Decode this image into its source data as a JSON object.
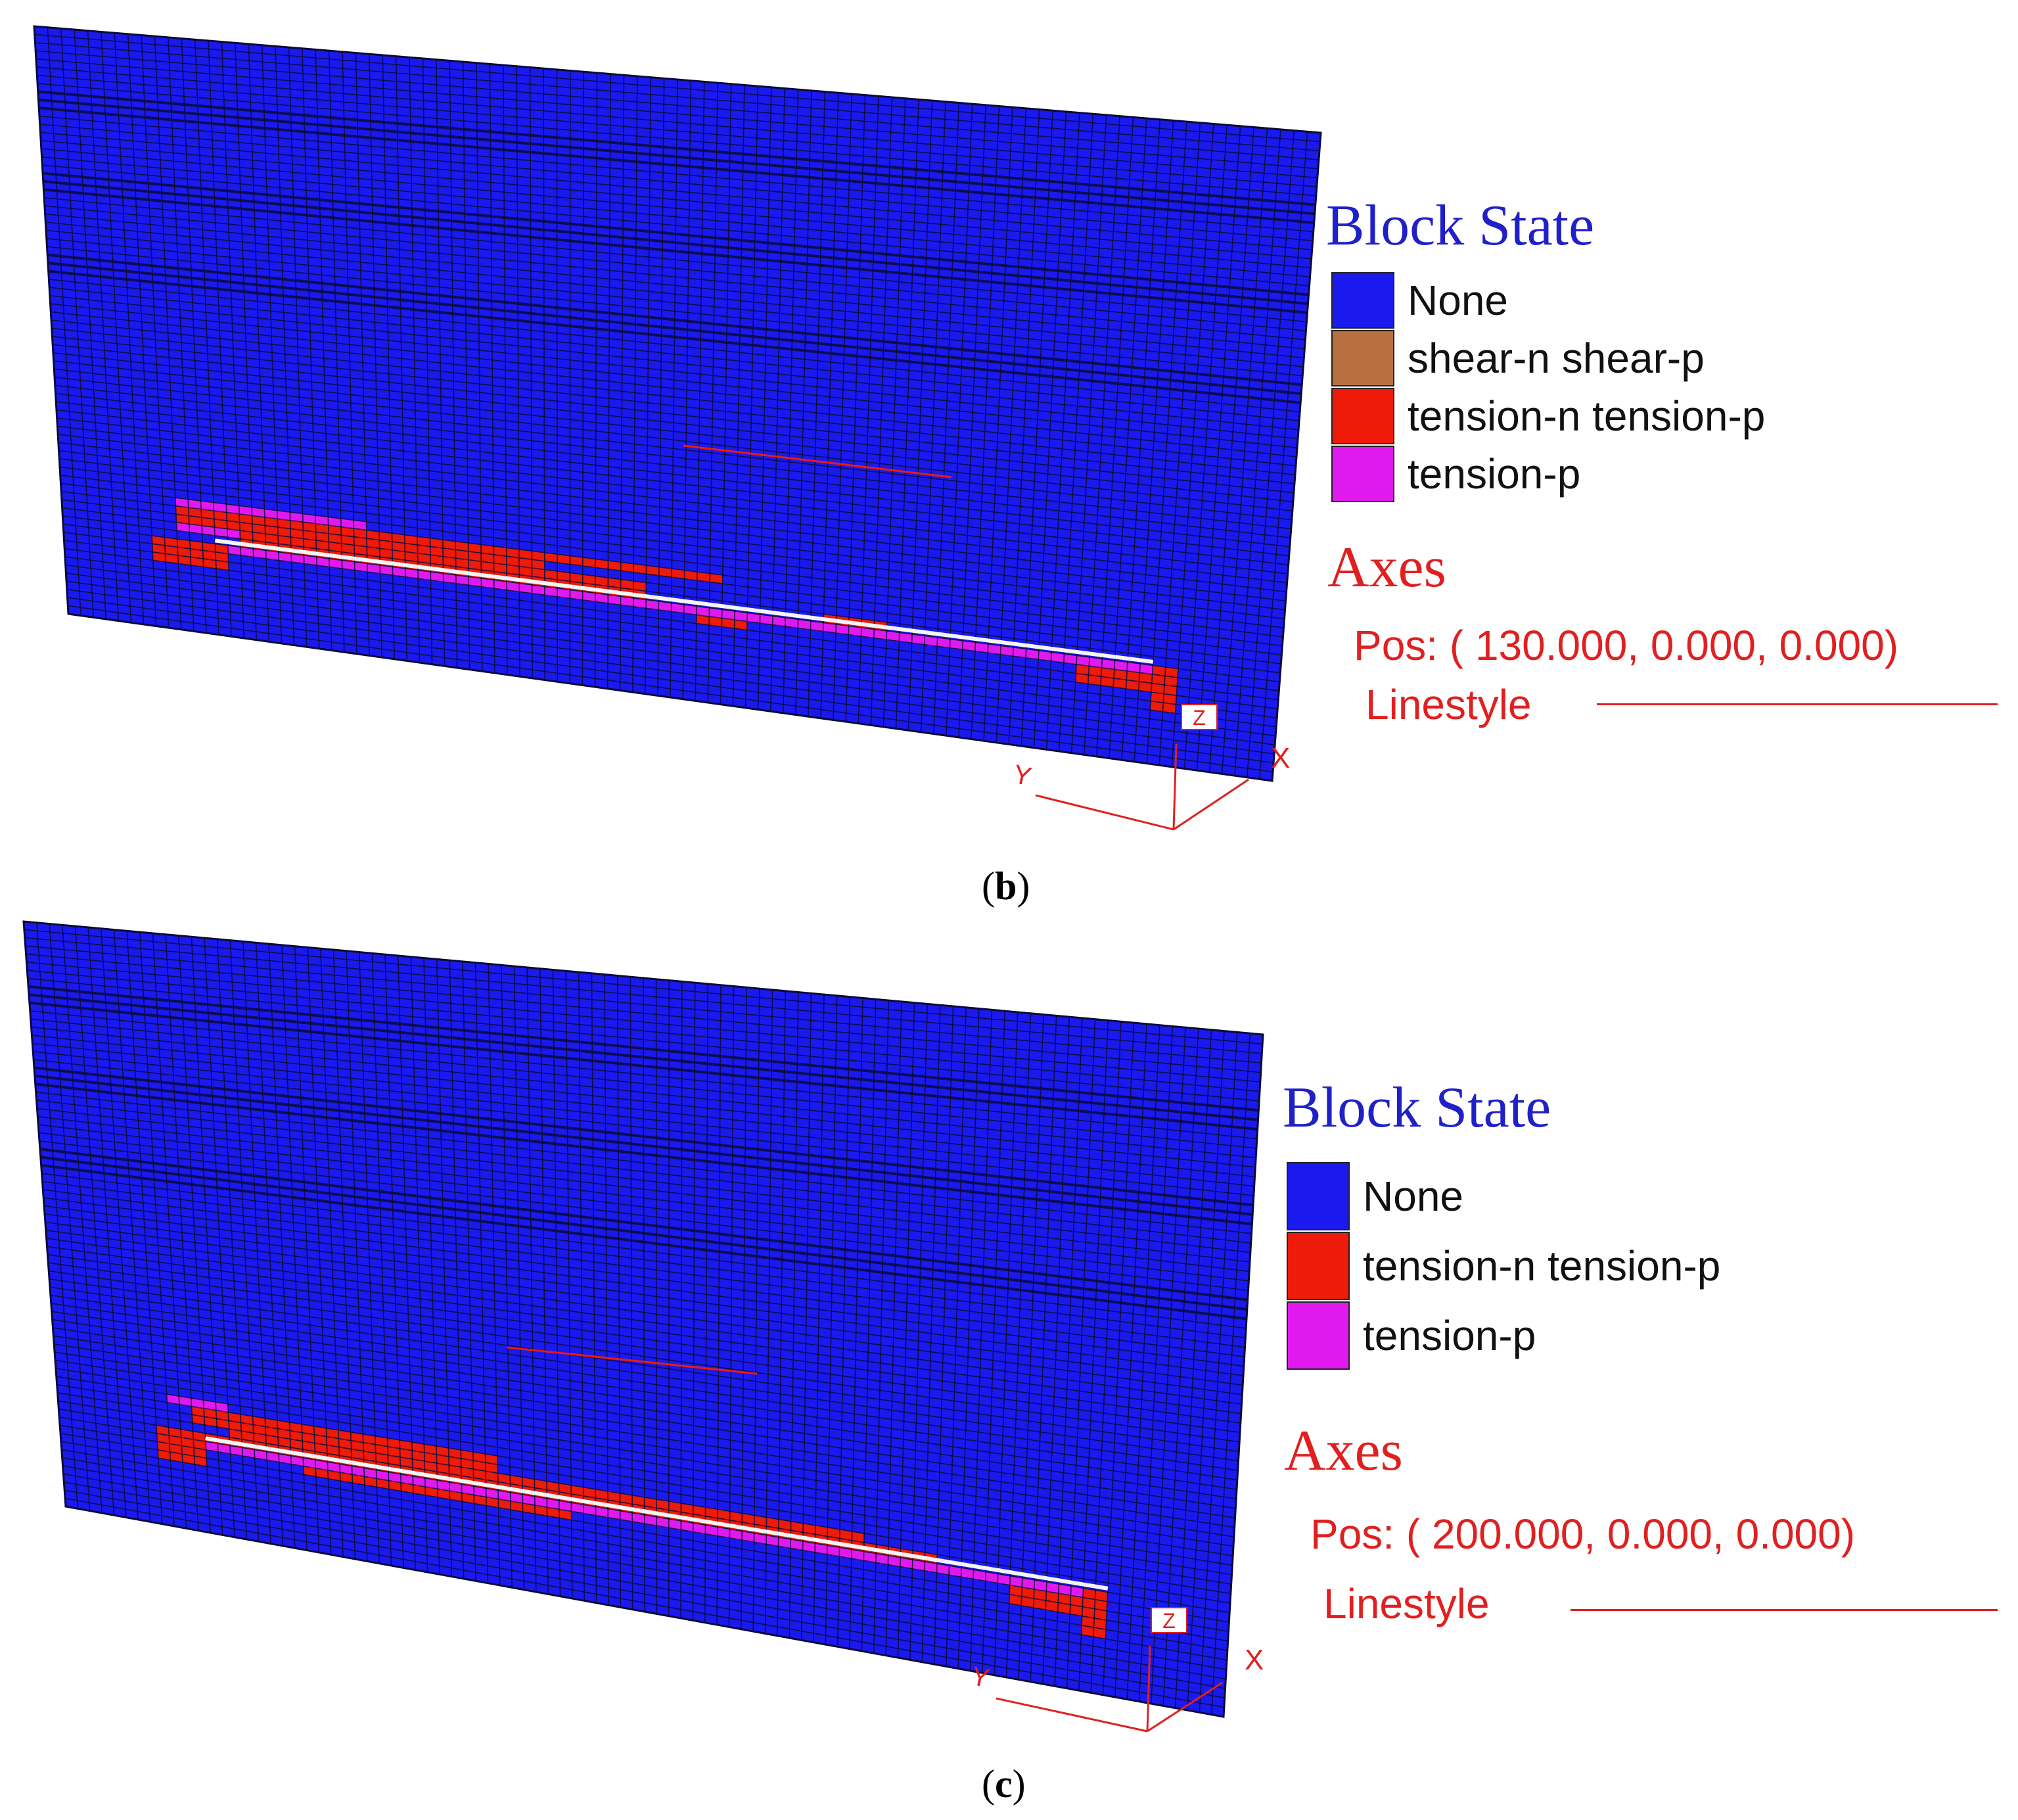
{
  "colors": {
    "none": "#1a1aee",
    "shear": "#b87040",
    "tension_np": "#ee1a0a",
    "tension_p": "#e01aee",
    "axes": "#e02020",
    "mesh": "#0a0a3a"
  },
  "panels": [
    {
      "caption_open": "(",
      "caption_letter": "b",
      "caption_close": ")",
      "legend_title": "Block State",
      "legend": [
        {
          "label": "None",
          "color": "#1a1aee"
        },
        {
          "label": "shear-n shear-p",
          "color": "#b87040"
        },
        {
          "label": "tension-n tension-p",
          "color": "#ee1a0a"
        },
        {
          "label": "tension-p",
          "color": "#e01aee"
        }
      ],
      "axes_title": "Axes",
      "axes_pos": "Pos: ( 130.000,   0.000,   0.000)",
      "axes_linestyle": "Linestyle",
      "axis_labels": {
        "x": "X",
        "y": "Y",
        "z": "Z"
      }
    },
    {
      "caption_open": "(",
      "caption_letter": "c",
      "caption_close": ")",
      "legend_title": "Block State",
      "legend": [
        {
          "label": "None",
          "color": "#1a1aee"
        },
        {
          "label": "tension-n tension-p",
          "color": "#ee1a0a"
        },
        {
          "label": "tension-p",
          "color": "#e01aee"
        }
      ],
      "axes_title": "Axes",
      "axes_pos": "Pos: ( 200.000,   0.000,   0.000)",
      "axes_linestyle": "Linestyle",
      "axis_labels": {
        "x": "X",
        "y": "Y",
        "z": "Z"
      }
    }
  ]
}
